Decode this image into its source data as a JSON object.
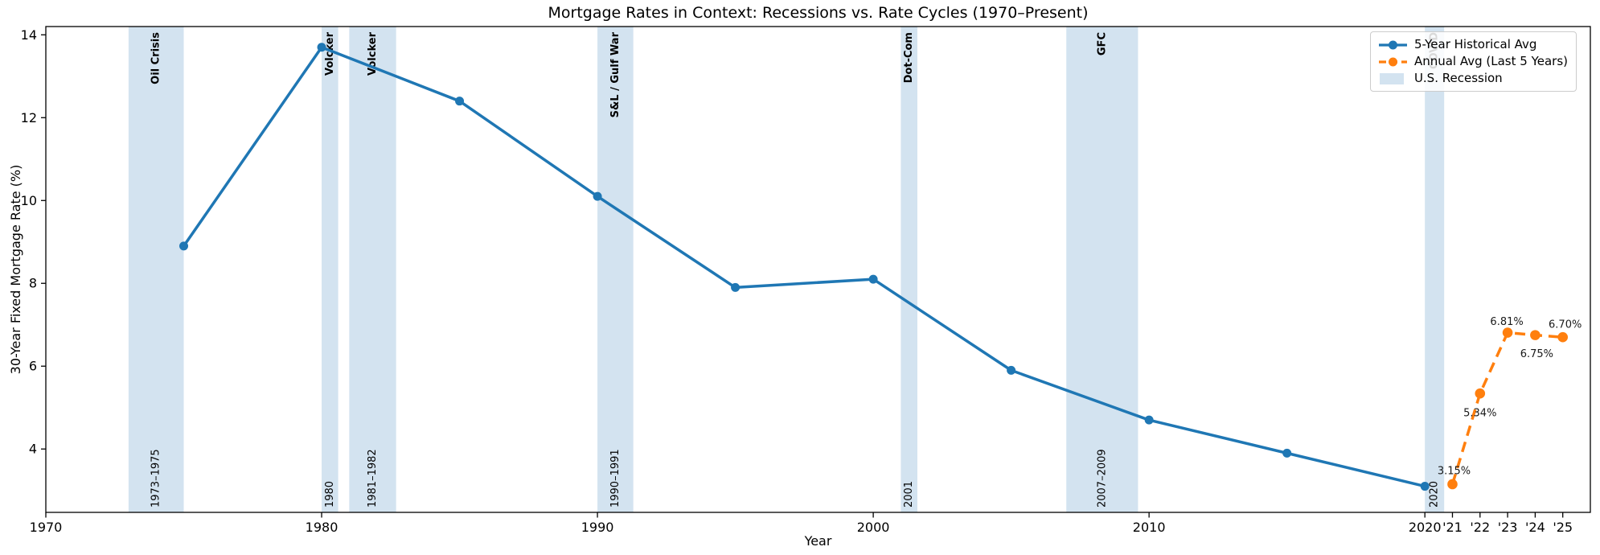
{
  "chart_data": {
    "type": "line",
    "title": "Mortgage Rates in Context: Recessions vs. Rate Cycles (1970–Present)",
    "xlabel": "Year",
    "ylabel": "30-Year Fixed Mortgage Rate (%)",
    "xlim": [
      1970,
      2026
    ],
    "ylim": [
      2.47,
      14.2
    ],
    "grid": false,
    "legend_position": "upper right",
    "xticks": {
      "values": [
        1970,
        1980,
        1990,
        2000,
        2010,
        2020,
        2021,
        2022,
        2023,
        2024,
        2025
      ],
      "labels": [
        "1970",
        "1980",
        "1990",
        "2000",
        "2010",
        "2020",
        "'21",
        "'22",
        "'23",
        "'24",
        "'25"
      ]
    },
    "yticks": [
      4,
      6,
      8,
      10,
      12,
      14
    ],
    "series": [
      {
        "name": "5-Year Historical Avg",
        "style": "solid",
        "color": "#1f77b4",
        "x": [
          1975,
          1980,
          1985,
          1990,
          1995,
          2000,
          2005,
          2010,
          2015,
          2020
        ],
        "y": [
          8.9,
          13.7,
          12.4,
          10.1,
          7.9,
          8.1,
          5.9,
          4.7,
          3.9,
          3.1
        ],
        "point_labels": [],
        "label_offsets": []
      },
      {
        "name": "Annual Avg (Last 5 Years)",
        "style": "dashed",
        "color": "#ff7f0e",
        "x": [
          2021,
          2022,
          2023,
          2024,
          2025
        ],
        "y": [
          3.15,
          5.34,
          6.81,
          6.75,
          6.7
        ],
        "point_labels": [
          "3.15%",
          "5.34%",
          "6.81%",
          "6.75%",
          "6.70%"
        ],
        "label_offsets": [
          [
            2,
            -16
          ],
          [
            0,
            25
          ],
          [
            -1,
            -13
          ],
          [
            2,
            24
          ],
          [
            3,
            -15
          ]
        ]
      }
    ],
    "recessions": [
      {
        "label": "Oil Crisis",
        "range_label": "1973–1975",
        "start": 1973,
        "end": 1975
      },
      {
        "label": "Volcker",
        "range_label": "1980",
        "start": 1980,
        "end": 1980.6
      },
      {
        "label": "Volcker",
        "range_label": "1981–1982",
        "start": 1981,
        "end": 1982.7
      },
      {
        "label": "S&L / Gulf War",
        "range_label": "1990–1991",
        "start": 1990,
        "end": 1991.3
      },
      {
        "label": "Dot-Com",
        "range_label": "2001",
        "start": 2001,
        "end": 2001.6
      },
      {
        "label": "GFC",
        "range_label": "2007–2009",
        "start": 2007,
        "end": 2009.6
      },
      {
        "label": "COVID",
        "range_label": "2020",
        "start": 2020,
        "end": 2020.7
      }
    ],
    "recession_color": "#d3e3f0",
    "legend": [
      {
        "label": "5-Year Historical Avg",
        "sample": "line-solid",
        "color": "#1f77b4"
      },
      {
        "label": "Annual Avg (Last 5 Years)",
        "sample": "line-dashed",
        "color": "#ff7f0e"
      },
      {
        "label": "U.S. Recession",
        "sample": "patch",
        "color": "#d3e3f0"
      }
    ]
  }
}
